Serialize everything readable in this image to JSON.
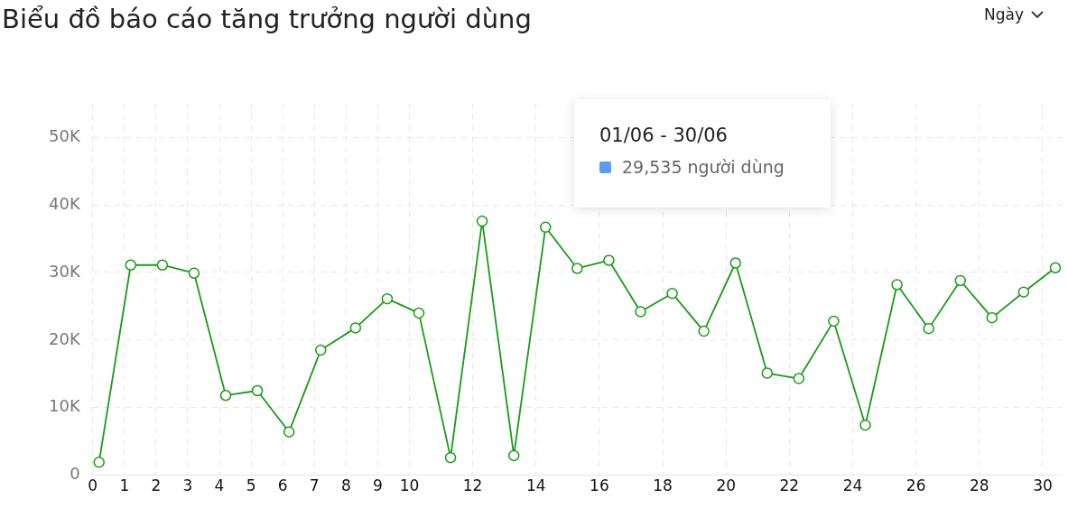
{
  "chart_data": {
    "type": "line",
    "title": "Biểu đồ báo cáo tăng trưởng người dùng",
    "annotations": [
      "Ngày",
      "01/06 - 30/06",
      "29,535 người dùng"
    ],
    "x": [
      0.2,
      1.2,
      2.2,
      3.2,
      4.2,
      5.2,
      6.2,
      7.2,
      8.3,
      9.3,
      10.3,
      11.3,
      12.3,
      13.3,
      14.3,
      15.3,
      16.3,
      17.3,
      18.3,
      19.3,
      20.3,
      21.3,
      22.3,
      23.4,
      24.4,
      25.4,
      26.4,
      27.4,
      28.4,
      29.4,
      30.4
    ],
    "series": [
      {
        "color": "#1a9a1a",
        "values": [
          1900,
          31100,
          31100,
          29900,
          11800,
          12500,
          6400,
          18500,
          21800,
          26100,
          24000,
          2600,
          37600,
          2900,
          36700,
          30600,
          31800,
          24200,
          26900,
          21300,
          31400,
          15100,
          14300,
          22800,
          7400,
          28200,
          21700,
          28800,
          23300,
          27100,
          30700
        ]
      }
    ],
    "xlim": [
      0,
      30.6
    ],
    "xticks": [
      0,
      1,
      2,
      3,
      4,
      5,
      6,
      7,
      8,
      9,
      10,
      12,
      14,
      16,
      18,
      20,
      22,
      24,
      26,
      28,
      30
    ],
    "ylim": [
      0,
      55000
    ],
    "yticks": [
      {
        "value": 0,
        "label": "0"
      },
      {
        "value": 10000,
        "label": "10K"
      },
      {
        "value": 20000,
        "label": "20K"
      },
      {
        "value": 30000,
        "label": "30K"
      },
      {
        "value": 40000,
        "label": "40K"
      },
      {
        "value": 50000,
        "label": "50K"
      }
    ],
    "grid": true,
    "legend": false,
    "marker": "circle",
    "line_style": "solid"
  }
}
